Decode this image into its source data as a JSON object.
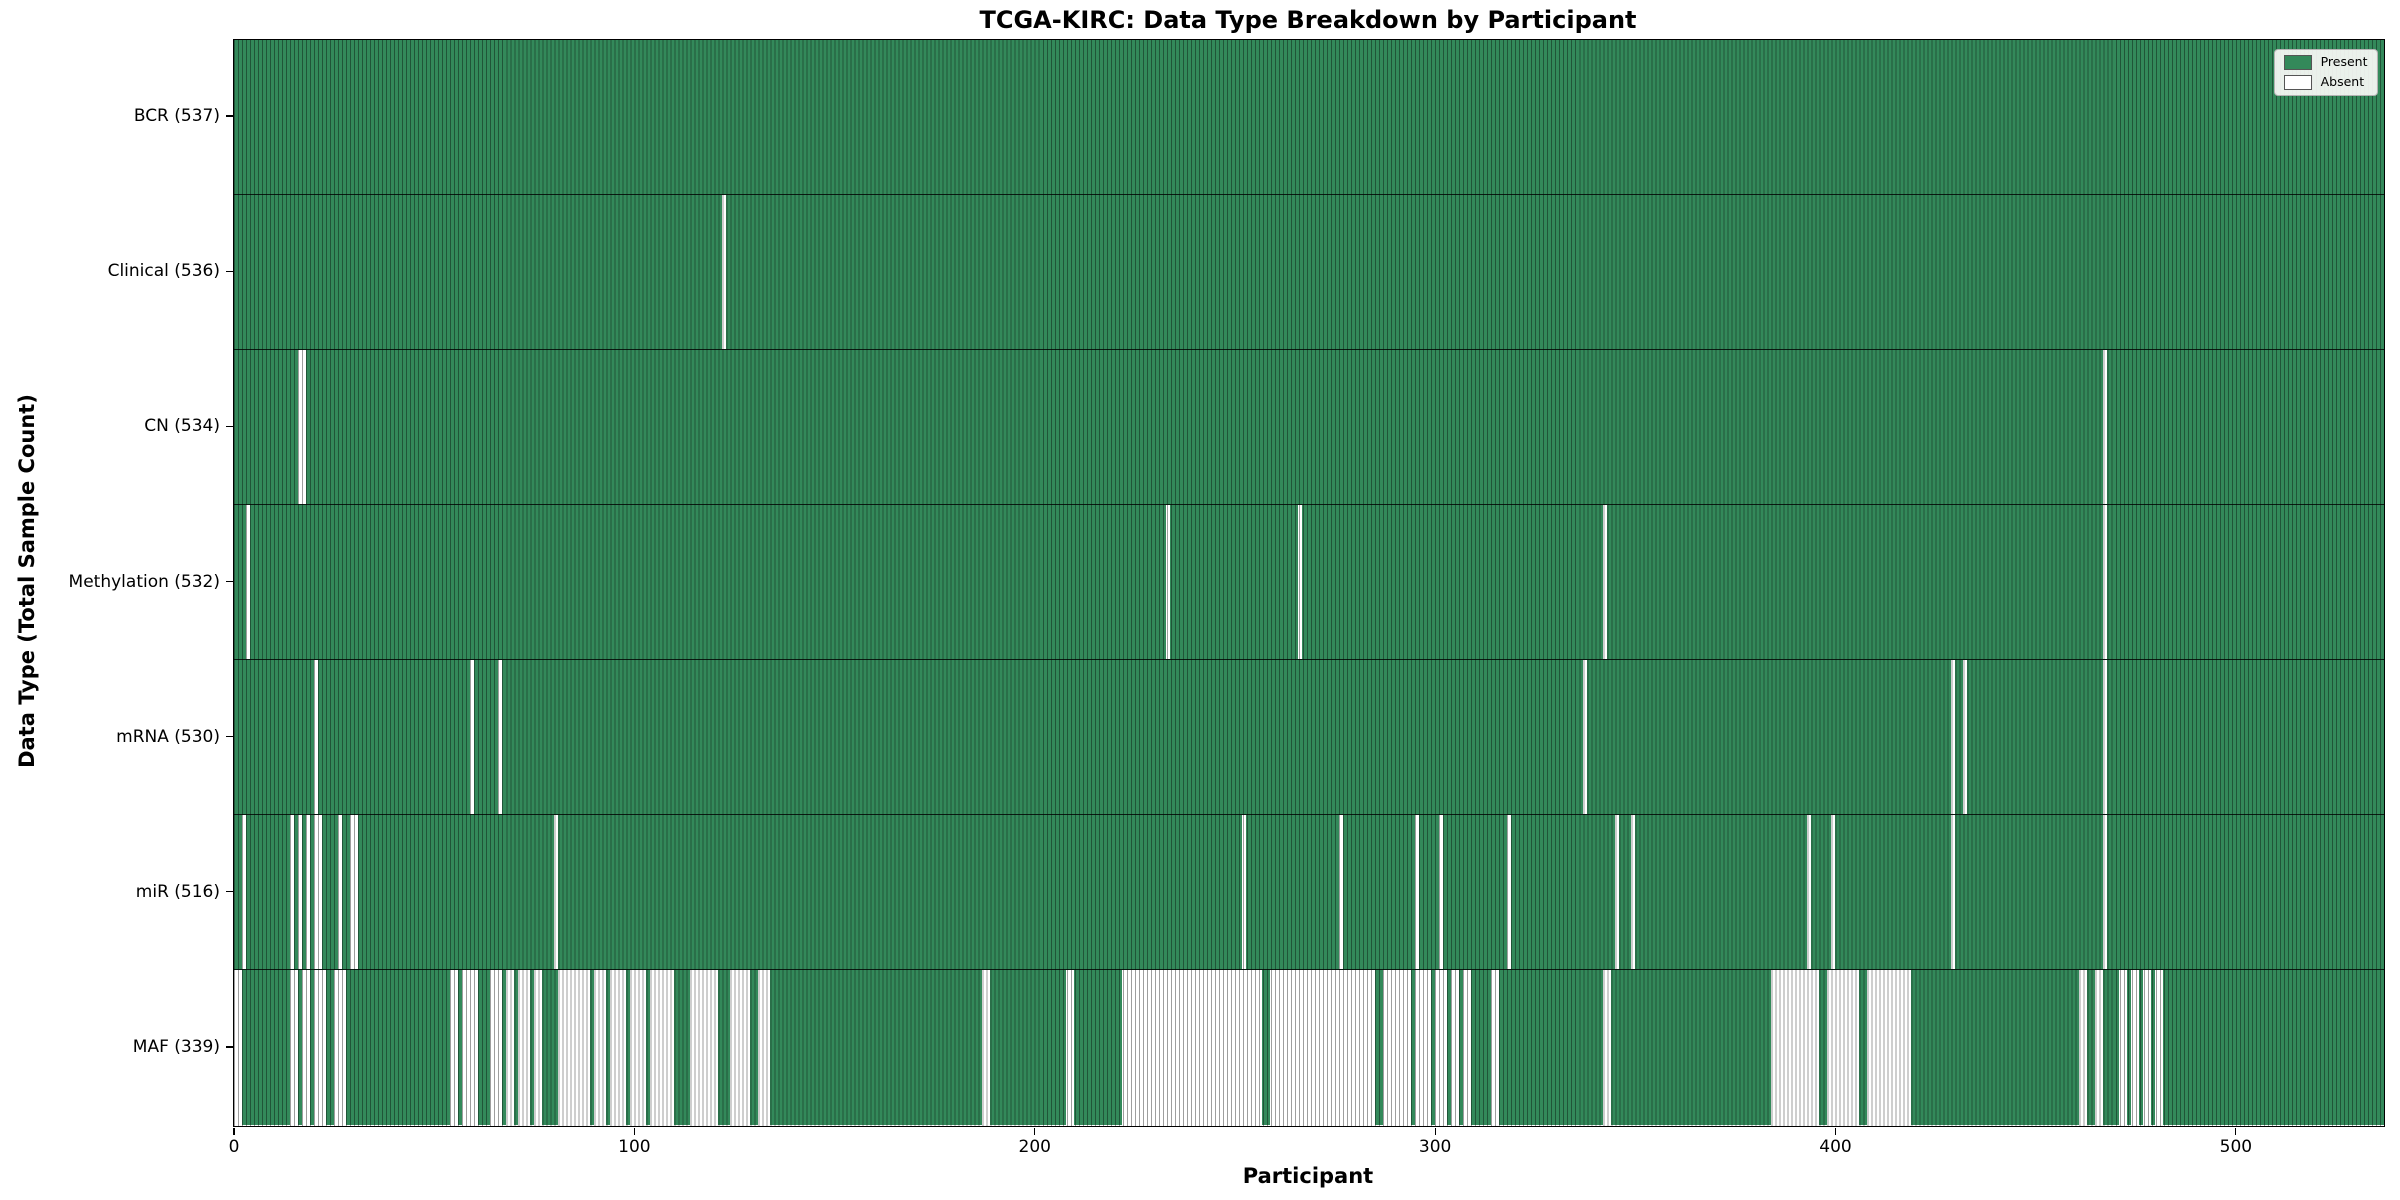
{
  "chart_data": {
    "type": "heatmap",
    "title": "TCGA-KIRC: Data Type Breakdown by Participant",
    "xlabel": "Participant",
    "ylabel": "Data Type (Total Sample Count)",
    "legend_labels": [
      "Present",
      "Absent"
    ],
    "legend_position": "upper right",
    "n_participants": 537,
    "x_ticks": [
      0,
      100,
      200,
      300,
      400,
      500
    ],
    "colors": {
      "present": "#33895A",
      "absent": "#ffffff",
      "column_edge": "rgba(0,0,0,0.38)",
      "row_divider": "rgba(0,0,0,0.8)",
      "plot_border": "#000000",
      "legend_bg": "#faf9f5",
      "legend_border": "#b3b3b3"
    },
    "rows": [
      {
        "name": "BCR",
        "label": "BCR (537)",
        "present_count": 537,
        "absent_ranges": []
      },
      {
        "name": "Clinical",
        "label": "Clinical (536)",
        "present_count": 536,
        "absent_ranges": [
          [
            122,
            122
          ]
        ]
      },
      {
        "name": "CN",
        "label": "CN (534)",
        "present_count": 534,
        "absent_ranges": [
          [
            16,
            17
          ],
          [
            467,
            467
          ]
        ]
      },
      {
        "name": "Methylation",
        "label": "Methylation (532)",
        "present_count": 532,
        "absent_ranges": [
          [
            3,
            3
          ],
          [
            233,
            233
          ],
          [
            266,
            266
          ],
          [
            342,
            342
          ],
          [
            467,
            467
          ]
        ]
      },
      {
        "name": "mRNA",
        "label": "mRNA (530)",
        "present_count": 530,
        "absent_ranges": [
          [
            20,
            20
          ],
          [
            59,
            59
          ],
          [
            66,
            66
          ],
          [
            337,
            337
          ],
          [
            429,
            429
          ],
          [
            432,
            432
          ],
          [
            467,
            467
          ]
        ]
      },
      {
        "name": "miR",
        "label": "miR (516)",
        "present_count": 516,
        "absent_ranges": [
          [
            2,
            2
          ],
          [
            14,
            14
          ],
          [
            16,
            16
          ],
          [
            18,
            18
          ],
          [
            20,
            21
          ],
          [
            26,
            26
          ],
          [
            29,
            30
          ],
          [
            80,
            80
          ],
          [
            252,
            252
          ],
          [
            276,
            276
          ],
          [
            295,
            295
          ],
          [
            301,
            301
          ],
          [
            318,
            318
          ],
          [
            345,
            345
          ],
          [
            349,
            349
          ],
          [
            393,
            393
          ],
          [
            399,
            399
          ],
          [
            429,
            429
          ],
          [
            467,
            467
          ]
        ]
      },
      {
        "name": "MAF",
        "label": "MAF (339)",
        "present_count": 339,
        "absent_ranges": [
          [
            0,
            1
          ],
          [
            14,
            15
          ],
          [
            17,
            18
          ],
          [
            20,
            22
          ],
          [
            25,
            27
          ],
          [
            54,
            55
          ],
          [
            57,
            60
          ],
          [
            64,
            66
          ],
          [
            68,
            69
          ],
          [
            71,
            73
          ],
          [
            75,
            76
          ],
          [
            81,
            88
          ],
          [
            90,
            92
          ],
          [
            94,
            97
          ],
          [
            99,
            102
          ],
          [
            104,
            109
          ],
          [
            114,
            120
          ],
          [
            124,
            128
          ],
          [
            131,
            133
          ],
          [
            187,
            188
          ],
          [
            208,
            209
          ],
          [
            222,
            256
          ],
          [
            259,
            284
          ],
          [
            287,
            293
          ],
          [
            295,
            298
          ],
          [
            300,
            302
          ],
          [
            304,
            305
          ],
          [
            307,
            308
          ],
          [
            314,
            315
          ],
          [
            342,
            343
          ],
          [
            384,
            395
          ],
          [
            398,
            405
          ],
          [
            408,
            418
          ],
          [
            461,
            462
          ],
          [
            465,
            466
          ],
          [
            471,
            472
          ],
          [
            474,
            475
          ],
          [
            477,
            478
          ],
          [
            480,
            481
          ]
        ]
      }
    ]
  }
}
